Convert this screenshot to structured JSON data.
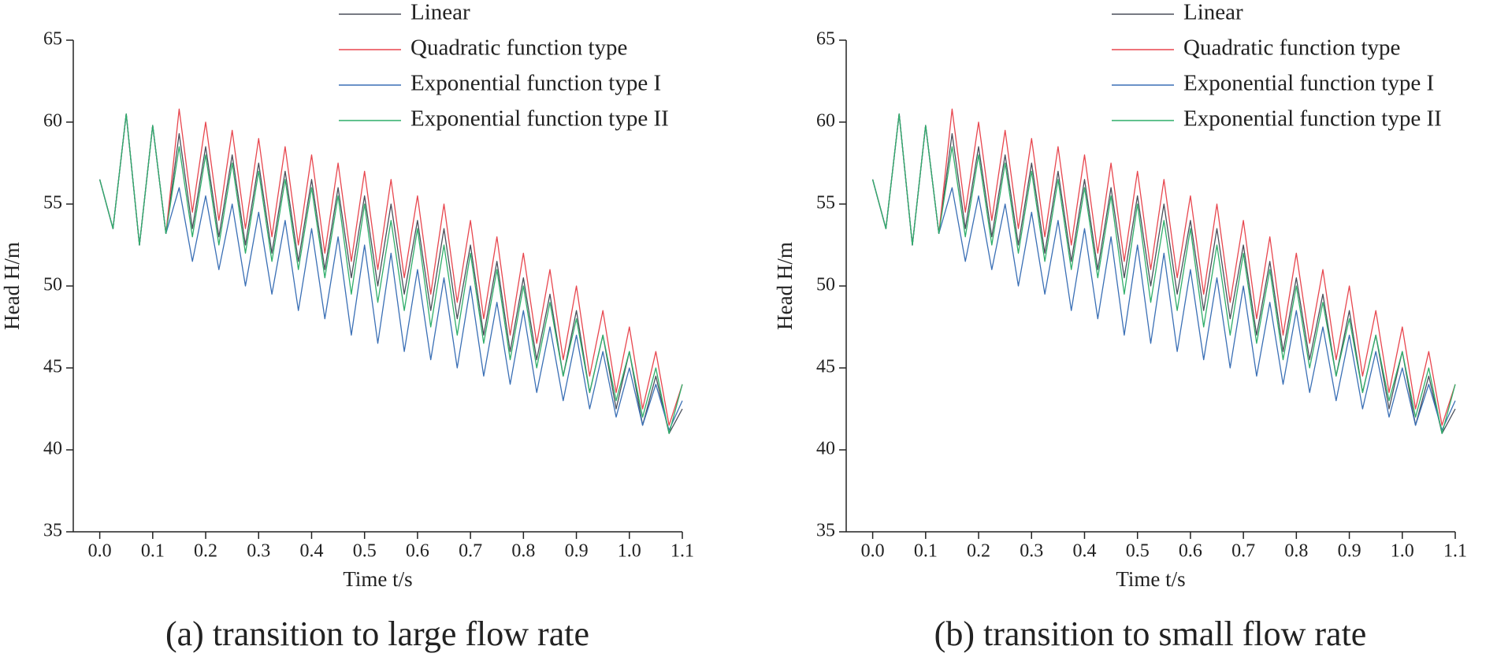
{
  "chart_data": [
    {
      "type": "line",
      "caption": "(a) transition to large flow rate",
      "x_label": "Time t/s",
      "y_label": "Head  H/m",
      "x": [
        0,
        0.025,
        0.05,
        0.075,
        0.1,
        0.125,
        0.15,
        0.175,
        0.2,
        0.225,
        0.25,
        0.275,
        0.3,
        0.325,
        0.35,
        0.375,
        0.4,
        0.425,
        0.45,
        0.475,
        0.5,
        0.525,
        0.55,
        0.575,
        0.6,
        0.625,
        0.65,
        0.675,
        0.7,
        0.725,
        0.75,
        0.775,
        0.8,
        0.825,
        0.85,
        0.875,
        0.9,
        0.925,
        0.95,
        0.975,
        1.0,
        1.025,
        1.05,
        1.075,
        1.1
      ],
      "series": [
        {
          "name": "Linear",
          "color": "#4a4f5a",
          "values": [
            56.5,
            53.5,
            60.5,
            52.5,
            59.8,
            53.2,
            59.3,
            53.5,
            58.5,
            53,
            58,
            52.5,
            57.5,
            52,
            57,
            51.5,
            56.5,
            51,
            56,
            50.5,
            55.5,
            50,
            55,
            49.5,
            54,
            48.5,
            53.5,
            48,
            52.5,
            47,
            51.5,
            46,
            50.5,
            45.5,
            49.5,
            44.5,
            48.5,
            43.5,
            47,
            42.5,
            46,
            41.5,
            44.5,
            41,
            42.5
          ]
        },
        {
          "name": "Quadratic function type",
          "color": "#e8474f",
          "values": [
            56.5,
            53.5,
            60.5,
            52.5,
            59.8,
            53.2,
            60.8,
            54.5,
            60,
            54,
            59.5,
            53.5,
            59,
            53,
            58.5,
            52.5,
            58,
            52,
            57.5,
            51.5,
            57,
            51,
            56.5,
            50.5,
            55.5,
            49.5,
            55,
            49,
            54,
            48,
            53,
            47,
            52,
            46.5,
            51,
            45.5,
            50,
            44.5,
            48.5,
            43.5,
            47.5,
            42.5,
            46,
            41.5,
            44
          ]
        },
        {
          "name": "Exponential function type I",
          "color": "#3a6fb5",
          "values": [
            56.5,
            53.5,
            60.5,
            52.5,
            59.8,
            53.2,
            56,
            51.5,
            55.5,
            51,
            55,
            50,
            54.5,
            49.5,
            54,
            48.5,
            53.5,
            48,
            53,
            47,
            52.5,
            46.5,
            52,
            46,
            51,
            45.5,
            50.5,
            45,
            50,
            44.5,
            49,
            44,
            48.5,
            43.5,
            47.5,
            43,
            47,
            42.5,
            46,
            42,
            45,
            41.5,
            44,
            41.2,
            43
          ]
        },
        {
          "name": "Exponential function type II",
          "color": "#2fae6a",
          "values": [
            56.5,
            53.5,
            60.5,
            52.5,
            59.8,
            53.2,
            58.5,
            53,
            58,
            52.5,
            57.5,
            52,
            57,
            51.5,
            56.5,
            51,
            56,
            50.5,
            55.5,
            49.5,
            55,
            49,
            54,
            48.5,
            53.5,
            47.5,
            52.5,
            47,
            52,
            46.5,
            51,
            45.5,
            50,
            45,
            49,
            44.5,
            48,
            43.5,
            47,
            43,
            46,
            42,
            45,
            41,
            44
          ]
        }
      ],
      "xlim": [
        -0.05,
        1.1
      ],
      "xticks": [
        {
          "value": 0,
          "label": "0.0"
        },
        0.1,
        0.2,
        0.3,
        0.4,
        0.5,
        0.6,
        0.7,
        0.8,
        0.9,
        {
          "value": 1,
          "label": "1.0"
        },
        1.1
      ],
      "ylim": [
        35,
        65
      ],
      "yticks": [
        35,
        40,
        45,
        50,
        55,
        60,
        65
      ],
      "legend": "top-right"
    },
    {
      "type": "line",
      "caption": "(b) transition to small flow rate",
      "x_label": "Time t/s",
      "y_label": "Head  H/m",
      "x": [
        0,
        0.025,
        0.05,
        0.075,
        0.1,
        0.125,
        0.15,
        0.175,
        0.2,
        0.225,
        0.25,
        0.275,
        0.3,
        0.325,
        0.35,
        0.375,
        0.4,
        0.425,
        0.45,
        0.475,
        0.5,
        0.525,
        0.55,
        0.575,
        0.6,
        0.625,
        0.65,
        0.675,
        0.7,
        0.725,
        0.75,
        0.775,
        0.8,
        0.825,
        0.85,
        0.875,
        0.9,
        0.925,
        0.95,
        0.975,
        1.0,
        1.025,
        1.05,
        1.075,
        1.1
      ],
      "series": [
        {
          "name": "Linear",
          "color": "#4a4f5a",
          "values": [
            56.5,
            53.5,
            60.5,
            52.5,
            59.8,
            53.2,
            59.3,
            53.5,
            58.5,
            53,
            58,
            52.5,
            57.5,
            52,
            57,
            51.5,
            56.5,
            51,
            56,
            50.5,
            55.5,
            50,
            55,
            49.5,
            54,
            48.5,
            53.5,
            48,
            52.5,
            47,
            51.5,
            46,
            50.5,
            45.5,
            49.5,
            44.5,
            48.5,
            43.5,
            47,
            42.5,
            46,
            41.5,
            44.5,
            41,
            42.5
          ]
        },
        {
          "name": "Quadratic function type",
          "color": "#e8474f",
          "values": [
            56.5,
            53.5,
            60.5,
            52.5,
            59.8,
            53.2,
            60.8,
            54.5,
            60,
            54,
            59.5,
            53.5,
            59,
            53,
            58.5,
            52.5,
            58,
            52,
            57.5,
            51.5,
            57,
            51,
            56.5,
            50.5,
            55.5,
            49.5,
            55,
            49,
            54,
            48,
            53,
            47,
            52,
            46.5,
            51,
            45.5,
            50,
            44.5,
            48.5,
            43.5,
            47.5,
            42.5,
            46,
            41.5,
            44
          ]
        },
        {
          "name": "Exponential function type I",
          "color": "#3a6fb5",
          "values": [
            56.5,
            53.5,
            60.5,
            52.5,
            59.8,
            53.2,
            56,
            51.5,
            55.5,
            51,
            55,
            50,
            54.5,
            49.5,
            54,
            48.5,
            53.5,
            48,
            53,
            47,
            52.5,
            46.5,
            52,
            46,
            51,
            45.5,
            50.5,
            45,
            50,
            44.5,
            49,
            44,
            48.5,
            43.5,
            47.5,
            43,
            47,
            42.5,
            46,
            42,
            45,
            41.5,
            44,
            41.2,
            43
          ]
        },
        {
          "name": "Exponential function type II",
          "color": "#2fae6a",
          "values": [
            56.5,
            53.5,
            60.5,
            52.5,
            59.8,
            53.2,
            58.5,
            53,
            58,
            52.5,
            57.5,
            52,
            57,
            51.5,
            56.5,
            51,
            56,
            50.5,
            55.5,
            49.5,
            55,
            49,
            54,
            48.5,
            53.5,
            47.5,
            52.5,
            47,
            52,
            46.5,
            51,
            45.5,
            50,
            45,
            49,
            44.5,
            48,
            43.5,
            47,
            43,
            46,
            42,
            45,
            41,
            44
          ]
        }
      ],
      "xlim": [
        -0.05,
        1.1
      ],
      "xticks": [
        {
          "value": 0,
          "label": "0.0"
        },
        0.1,
        0.2,
        0.3,
        0.4,
        0.5,
        0.6,
        0.7,
        0.8,
        0.9,
        {
          "value": 1,
          "label": "1.0"
        },
        1.1
      ],
      "ylim": [
        35,
        65
      ],
      "yticks": [
        35,
        40,
        45,
        50,
        55,
        60,
        65
      ],
      "legend": "top-right"
    }
  ]
}
